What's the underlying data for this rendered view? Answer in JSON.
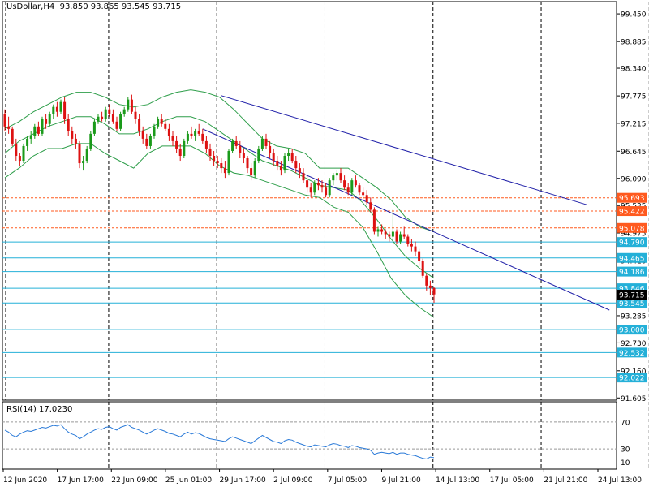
{
  "header": {
    "symbol": "UsDollar,H4",
    "ohlc": "93.850 93.865 93.545 93.715"
  },
  "rsi_header": {
    "label": "RSI(14)",
    "value": "17.0230"
  },
  "colors": {
    "bull": "#1a9a1a",
    "bear": "#dd1111",
    "bands": "#2e9e4a",
    "channel": "#1f1fa8",
    "resistance": "#ff5a1f",
    "support": "#24b0d8",
    "rsi": "#2a7ad8",
    "current_price_bg": "#000000"
  },
  "chart_data": [
    {
      "type": "candlestick",
      "title": "UsDollar,H4",
      "ylim": [
        91.56,
        99.7
      ],
      "y_ticks": [
        "99.450",
        "98.885",
        "98.340",
        "97.775",
        "97.215",
        "96.645",
        "96.090",
        "95.535",
        "94.975",
        "94.410",
        "93.850",
        "93.285",
        "92.730",
        "92.160",
        "91.605"
      ],
      "x_ticks": [
        "12 Jun 2020",
        "17 Jun 17:00",
        "22 Jun 09:00",
        "25 Jun 01:00",
        "29 Jun 17:00",
        "2 Jul 09:00",
        "7 Jul 05:00",
        "9 Jul 21:00",
        "14 Jul 13:00",
        "17 Jul 05:00",
        "21 Jul 21:00",
        "24 Jul 13:00"
      ],
      "vertical_grid_after_ticks": [
        "17 Jun 17:00",
        "25 Jun 01:00",
        "2 Jul 09:00",
        "9 Jul 21:00",
        "17 Jul 05:00",
        "24 Jul 13:00"
      ],
      "horizontal_levels": [
        {
          "value": 95.693,
          "label": "95.693",
          "kind": "resistance"
        },
        {
          "value": 95.422,
          "label": "95.422",
          "kind": "resistance"
        },
        {
          "value": 95.078,
          "label": "95.078",
          "kind": "resistance"
        },
        {
          "value": 94.79,
          "label": "94.790",
          "kind": "support"
        },
        {
          "value": 94.465,
          "label": "94.465",
          "kind": "support"
        },
        {
          "value": 94.186,
          "label": "94.186",
          "kind": "support"
        },
        {
          "value": 93.846,
          "label": "93.846",
          "kind": "support"
        },
        {
          "value": 93.545,
          "label": "93.545",
          "kind": "support"
        },
        {
          "value": 93.0,
          "label": "93.000",
          "kind": "support"
        },
        {
          "value": 92.532,
          "label": "92.532",
          "kind": "support"
        },
        {
          "value": 92.022,
          "label": "92.022",
          "kind": "support"
        }
      ],
      "current_price": {
        "value": 93.715,
        "label": "93.715"
      },
      "channel_lines": [
        {
          "name": "upper",
          "from": {
            "bar": 58,
            "price": 97.78
          },
          "to": {
            "bar": 156,
            "price": 95.55
          }
        },
        {
          "name": "lower",
          "from": {
            "bar": 53,
            "price": 97.1
          },
          "to": {
            "bar": 162,
            "price": 93.4
          }
        }
      ],
      "bollinger_bands": {
        "upper": [
          97.1,
          97.25,
          97.45,
          97.6,
          97.75,
          97.85,
          97.85,
          97.75,
          97.6,
          97.55,
          97.6,
          97.75,
          97.85,
          97.9,
          97.85,
          97.75,
          97.5,
          97.2,
          96.9,
          96.75,
          96.7,
          96.6,
          96.3,
          96.3,
          96.3,
          96.1,
          95.9,
          95.65,
          95.3,
          95.1,
          95.0
        ],
        "middle": [
          96.6,
          96.85,
          97.0,
          97.15,
          97.25,
          97.35,
          97.35,
          97.2,
          97.0,
          97.0,
          97.1,
          97.25,
          97.35,
          97.35,
          97.25,
          97.05,
          96.85,
          96.65,
          96.45,
          96.35,
          96.25,
          96.1,
          95.95,
          95.9,
          95.85,
          95.6,
          95.25,
          94.85,
          94.5,
          94.25,
          94.05
        ],
        "lower": [
          96.1,
          96.3,
          96.55,
          96.7,
          96.7,
          96.8,
          96.8,
          96.6,
          96.45,
          96.3,
          96.6,
          96.75,
          96.75,
          96.75,
          96.6,
          96.35,
          96.2,
          96.15,
          96.05,
          95.95,
          95.85,
          95.75,
          95.7,
          95.5,
          95.4,
          95.1,
          94.6,
          94.05,
          93.7,
          93.45,
          93.25
        ]
      },
      "candles": [
        [
          97.4,
          97.5,
          97.05,
          97.15
        ],
        [
          97.15,
          97.35,
          97.0,
          97.1
        ],
        [
          97.1,
          97.15,
          96.75,
          96.8
        ],
        [
          96.8,
          96.9,
          96.45,
          96.55
        ],
        [
          96.55,
          96.6,
          96.35,
          96.45
        ],
        [
          96.45,
          96.8,
          96.4,
          96.75
        ],
        [
          96.75,
          96.95,
          96.65,
          96.9
        ],
        [
          96.9,
          97.05,
          96.8,
          96.95
        ],
        [
          96.95,
          97.2,
          96.9,
          97.15
        ],
        [
          97.15,
          97.25,
          96.95,
          97.0
        ],
        [
          97.0,
          97.35,
          96.95,
          97.3
        ],
        [
          97.3,
          97.4,
          97.1,
          97.2
        ],
        [
          97.2,
          97.45,
          97.15,
          97.4
        ],
        [
          97.4,
          97.6,
          97.3,
          97.55
        ],
        [
          97.55,
          97.65,
          97.35,
          97.45
        ],
        [
          97.45,
          97.7,
          97.4,
          97.65
        ],
        [
          97.65,
          97.75,
          97.2,
          97.3
        ],
        [
          97.3,
          97.4,
          96.95,
          97.05
        ],
        [
          97.05,
          97.15,
          96.8,
          96.9
        ],
        [
          96.9,
          97.0,
          96.7,
          96.8
        ],
        [
          96.8,
          96.85,
          96.3,
          96.4
        ],
        [
          96.4,
          96.55,
          96.25,
          96.45
        ],
        [
          96.45,
          96.75,
          96.4,
          96.7
        ],
        [
          96.7,
          97.05,
          96.65,
          97.0
        ],
        [
          97.0,
          97.3,
          96.95,
          97.25
        ],
        [
          97.25,
          97.4,
          97.2,
          97.35
        ],
        [
          97.35,
          97.45,
          97.25,
          97.3
        ],
        [
          97.3,
          97.55,
          97.25,
          97.5
        ],
        [
          97.5,
          97.6,
          97.35,
          97.4
        ],
        [
          97.4,
          97.5,
          97.2,
          97.25
        ],
        [
          97.25,
          97.35,
          97.05,
          97.1
        ],
        [
          97.1,
          97.45,
          97.05,
          97.4
        ],
        [
          97.4,
          97.55,
          97.35,
          97.5
        ],
        [
          97.5,
          97.75,
          97.45,
          97.7
        ],
        [
          97.7,
          97.8,
          97.4,
          97.45
        ],
        [
          97.45,
          97.55,
          97.2,
          97.3
        ],
        [
          97.3,
          97.4,
          96.95,
          97.05
        ],
        [
          97.05,
          97.15,
          96.8,
          96.9
        ],
        [
          96.9,
          97.0,
          96.7,
          96.75
        ],
        [
          96.75,
          97.0,
          96.7,
          96.95
        ],
        [
          96.95,
          97.2,
          96.9,
          97.15
        ],
        [
          97.15,
          97.35,
          97.1,
          97.3
        ],
        [
          97.3,
          97.4,
          97.15,
          97.2
        ],
        [
          97.2,
          97.3,
          97.05,
          97.1
        ],
        [
          97.1,
          97.2,
          96.85,
          96.95
        ],
        [
          96.95,
          97.05,
          96.75,
          96.85
        ],
        [
          96.85,
          96.95,
          96.6,
          96.7
        ],
        [
          96.7,
          96.8,
          96.45,
          96.55
        ],
        [
          96.55,
          96.9,
          96.5,
          96.85
        ],
        [
          96.85,
          97.05,
          96.8,
          97.0
        ],
        [
          97.0,
          97.15,
          96.9,
          96.95
        ],
        [
          96.95,
          97.1,
          96.85,
          97.05
        ],
        [
          97.05,
          97.2,
          96.95,
          97.0
        ],
        [
          97.0,
          97.1,
          96.8,
          96.85
        ],
        [
          96.85,
          96.95,
          96.6,
          96.7
        ],
        [
          96.7,
          96.8,
          96.45,
          96.55
        ],
        [
          96.55,
          96.65,
          96.35,
          96.45
        ],
        [
          96.45,
          96.55,
          96.3,
          96.4
        ],
        [
          96.4,
          96.5,
          96.2,
          96.3
        ],
        [
          96.3,
          96.45,
          96.1,
          96.2
        ],
        [
          96.2,
          96.7,
          96.15,
          96.65
        ],
        [
          96.65,
          96.9,
          96.6,
          96.85
        ],
        [
          96.85,
          96.95,
          96.7,
          96.75
        ],
        [
          96.75,
          96.85,
          96.5,
          96.6
        ],
        [
          96.6,
          96.7,
          96.4,
          96.5
        ],
        [
          96.5,
          96.55,
          96.2,
          96.3
        ],
        [
          96.3,
          96.4,
          96.05,
          96.15
        ],
        [
          96.15,
          96.5,
          96.1,
          96.45
        ],
        [
          96.45,
          96.75,
          96.4,
          96.7
        ],
        [
          96.7,
          96.95,
          96.65,
          96.9
        ],
        [
          96.9,
          97.0,
          96.7,
          96.75
        ],
        [
          96.75,
          96.85,
          96.5,
          96.6
        ],
        [
          96.6,
          96.7,
          96.35,
          96.45
        ],
        [
          96.45,
          96.55,
          96.25,
          96.35
        ],
        [
          96.35,
          96.45,
          96.15,
          96.25
        ],
        [
          96.25,
          96.6,
          96.2,
          96.55
        ],
        [
          96.55,
          96.7,
          96.45,
          96.6
        ],
        [
          96.6,
          96.7,
          96.4,
          96.45
        ],
        [
          96.45,
          96.55,
          96.2,
          96.3
        ],
        [
          96.3,
          96.4,
          96.1,
          96.2
        ],
        [
          96.2,
          96.3,
          96.0,
          96.05
        ],
        [
          96.05,
          96.15,
          95.8,
          95.9
        ],
        [
          95.9,
          96.0,
          95.7,
          95.8
        ],
        [
          95.8,
          96.05,
          95.75,
          96.0
        ],
        [
          96.0,
          96.1,
          95.85,
          95.95
        ],
        [
          95.95,
          96.05,
          95.8,
          95.9
        ],
        [
          95.9,
          96.0,
          95.7,
          95.75
        ],
        [
          95.75,
          96.1,
          95.7,
          96.05
        ],
        [
          96.05,
          96.2,
          95.95,
          96.15
        ],
        [
          96.15,
          96.25,
          96.05,
          96.2
        ],
        [
          96.2,
          96.3,
          96.0,
          96.05
        ],
        [
          96.05,
          96.15,
          95.85,
          95.9
        ],
        [
          95.9,
          96.0,
          95.75,
          95.8
        ],
        [
          95.8,
          96.1,
          95.75,
          96.05
        ],
        [
          96.05,
          96.15,
          95.9,
          95.95
        ],
        [
          95.95,
          96.0,
          95.75,
          95.8
        ],
        [
          95.8,
          95.9,
          95.65,
          95.75
        ],
        [
          95.75,
          95.85,
          95.55,
          95.6
        ],
        [
          95.6,
          95.7,
          95.4,
          95.45
        ],
        [
          95.45,
          95.5,
          94.95,
          95.0
        ],
        [
          95.0,
          95.1,
          94.9,
          95.05
        ],
        [
          95.05,
          95.15,
          94.95,
          95.0
        ],
        [
          95.0,
          95.05,
          94.85,
          94.95
        ],
        [
          94.95,
          95.0,
          94.8,
          94.9
        ],
        [
          94.9,
          95.45,
          94.85,
          95.0
        ],
        [
          95.0,
          95.05,
          94.75,
          94.8
        ],
        [
          94.8,
          95.0,
          94.75,
          94.95
        ],
        [
          94.95,
          95.1,
          94.85,
          94.9
        ],
        [
          94.9,
          94.95,
          94.7,
          94.75
        ],
        [
          94.75,
          94.85,
          94.6,
          94.7
        ],
        [
          94.7,
          94.8,
          94.5,
          94.6
        ],
        [
          94.6,
          94.65,
          94.3,
          94.4
        ],
        [
          94.4,
          94.45,
          94.05,
          94.1
        ],
        [
          94.1,
          94.15,
          93.8,
          93.9
        ],
        [
          93.9,
          94.0,
          93.7,
          93.85
        ],
        [
          93.85,
          93.87,
          93.55,
          93.72
        ]
      ]
    },
    {
      "type": "line",
      "title": "RSI(14) 17.0230",
      "ylim": [
        0,
        100
      ],
      "y_ticks": [
        "70",
        "30",
        "10"
      ],
      "levels": [
        70,
        30
      ],
      "values": [
        58,
        55,
        50,
        48,
        52,
        55,
        57,
        56,
        58,
        60,
        62,
        61,
        63,
        65,
        64,
        66,
        60,
        55,
        52,
        50,
        45,
        48,
        52,
        55,
        58,
        60,
        59,
        62,
        63,
        60,
        58,
        62,
        64,
        66,
        62,
        60,
        58,
        55,
        52,
        55,
        58,
        60,
        58,
        56,
        53,
        52,
        50,
        48,
        52,
        55,
        52,
        54,
        53,
        50,
        47,
        45,
        44,
        43,
        42,
        41,
        45,
        48,
        46,
        44,
        42,
        40,
        38,
        42,
        46,
        50,
        47,
        44,
        41,
        40,
        38,
        42,
        44,
        43,
        40,
        38,
        36,
        34,
        33,
        36,
        35,
        34,
        33,
        36,
        38,
        37,
        35,
        34,
        32,
        35,
        34,
        32,
        31,
        30,
        28,
        22,
        24,
        25,
        24,
        23,
        25,
        22,
        24,
        24,
        22,
        21,
        20,
        18,
        16,
        15,
        18,
        17
      ]
    }
  ]
}
